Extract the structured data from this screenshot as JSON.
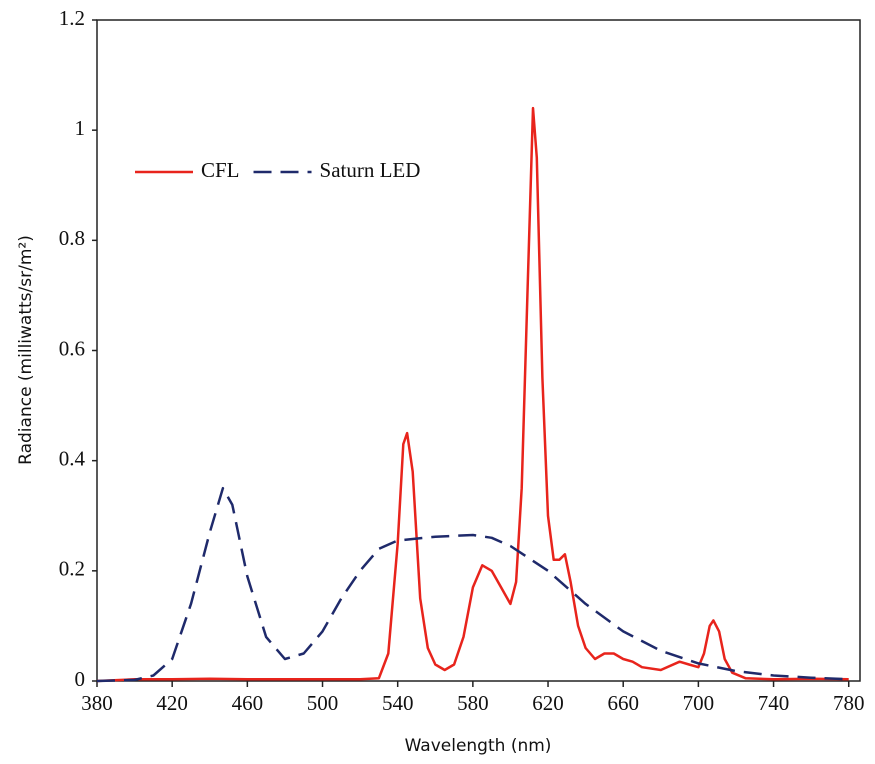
{
  "chart_data": {
    "type": "line",
    "xlabel": "Wavelength (nm)",
    "ylabel": "Radiance (milliwatts/sr/m²)",
    "xlim": [
      380,
      786
    ],
    "ylim": [
      0,
      1.2
    ],
    "xticks": [
      380,
      420,
      460,
      500,
      540,
      580,
      620,
      660,
      700,
      740,
      780
    ],
    "yticks": [
      0,
      0.2,
      0.4,
      0.6,
      0.8,
      1,
      1.2
    ],
    "legend": "upper left",
    "series": [
      {
        "name": "CFL",
        "color": "#e8241c",
        "dash": "solid",
        "x": [
          380,
          400,
          420,
          440,
          460,
          480,
          500,
          520,
          530,
          535,
          540,
          543,
          545,
          548,
          552,
          556,
          560,
          565,
          570,
          575,
          580,
          585,
          590,
          595,
          600,
          603,
          606,
          609,
          612,
          614,
          617,
          620,
          623,
          626,
          629,
          632,
          636,
          640,
          645,
          650,
          655,
          660,
          665,
          670,
          680,
          690,
          695,
          700,
          703,
          706,
          708,
          711,
          714,
          718,
          725,
          740,
          760,
          780
        ],
        "values": [
          0,
          0.003,
          0.003,
          0.004,
          0.003,
          0.003,
          0.003,
          0.003,
          0.005,
          0.05,
          0.25,
          0.43,
          0.45,
          0.38,
          0.15,
          0.06,
          0.03,
          0.02,
          0.03,
          0.08,
          0.17,
          0.21,
          0.2,
          0.17,
          0.14,
          0.18,
          0.35,
          0.7,
          1.04,
          0.95,
          0.55,
          0.3,
          0.22,
          0.22,
          0.23,
          0.18,
          0.1,
          0.06,
          0.04,
          0.05,
          0.05,
          0.04,
          0.035,
          0.025,
          0.02,
          0.035,
          0.03,
          0.025,
          0.05,
          0.1,
          0.11,
          0.09,
          0.04,
          0.015,
          0.005,
          0.003,
          0.004,
          0.003
        ]
      },
      {
        "name": "Saturn LED",
        "color": "#1f2a6b",
        "dash": "dashed",
        "x": [
          380,
          400,
          410,
          420,
          430,
          440,
          447,
          452,
          460,
          470,
          480,
          490,
          500,
          510,
          520,
          530,
          540,
          560,
          580,
          590,
          600,
          620,
          640,
          660,
          680,
          700,
          720,
          740,
          760,
          780
        ],
        "values": [
          0,
          0.002,
          0.01,
          0.04,
          0.14,
          0.27,
          0.35,
          0.32,
          0.19,
          0.08,
          0.04,
          0.05,
          0.09,
          0.15,
          0.2,
          0.24,
          0.255,
          0.262,
          0.265,
          0.26,
          0.245,
          0.2,
          0.14,
          0.09,
          0.055,
          0.032,
          0.018,
          0.01,
          0.006,
          0.003
        ]
      }
    ]
  }
}
